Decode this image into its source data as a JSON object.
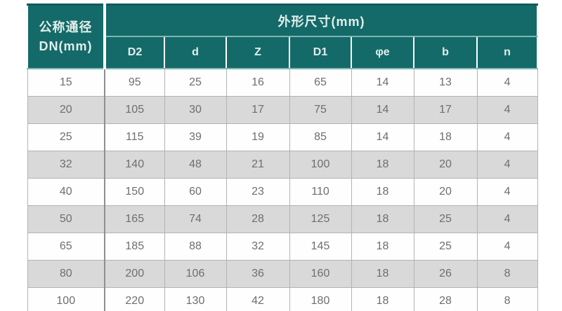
{
  "table": {
    "corner_header": {
      "line1": "公称通径",
      "line2": "DN(mm)"
    },
    "group_header": "外形尺寸(mm)",
    "columns": [
      "D2",
      "d",
      "Z",
      "D1",
      "φe",
      "b",
      "n"
    ],
    "rows": [
      {
        "dn": "15",
        "values": [
          "95",
          "25",
          "16",
          "65",
          "14",
          "13",
          "4"
        ]
      },
      {
        "dn": "20",
        "values": [
          "105",
          "30",
          "17",
          "75",
          "14",
          "17",
          "4"
        ]
      },
      {
        "dn": "25",
        "values": [
          "115",
          "39",
          "19",
          "85",
          "14",
          "18",
          "4"
        ]
      },
      {
        "dn": "32",
        "values": [
          "140",
          "48",
          "21",
          "100",
          "18",
          "20",
          "4"
        ]
      },
      {
        "dn": "40",
        "values": [
          "150",
          "60",
          "23",
          "110",
          "18",
          "20",
          "4"
        ]
      },
      {
        "dn": "50",
        "values": [
          "165",
          "74",
          "28",
          "125",
          "18",
          "25",
          "4"
        ]
      },
      {
        "dn": "65",
        "values": [
          "185",
          "88",
          "32",
          "145",
          "18",
          "25",
          "4"
        ]
      },
      {
        "dn": "80",
        "values": [
          "200",
          "106",
          "36",
          "160",
          "18",
          "26",
          "8"
        ]
      },
      {
        "dn": "100",
        "values": [
          "220",
          "130",
          "42",
          "180",
          "18",
          "28",
          "8"
        ]
      }
    ]
  },
  "colors": {
    "header_bg": "#146a69",
    "header_text": "#e3efec",
    "row_stripe": "#d9d9d9",
    "row_white": "#fefefe",
    "data_text": "#6e6e6e",
    "bottom_border": "#7d7d7d"
  }
}
